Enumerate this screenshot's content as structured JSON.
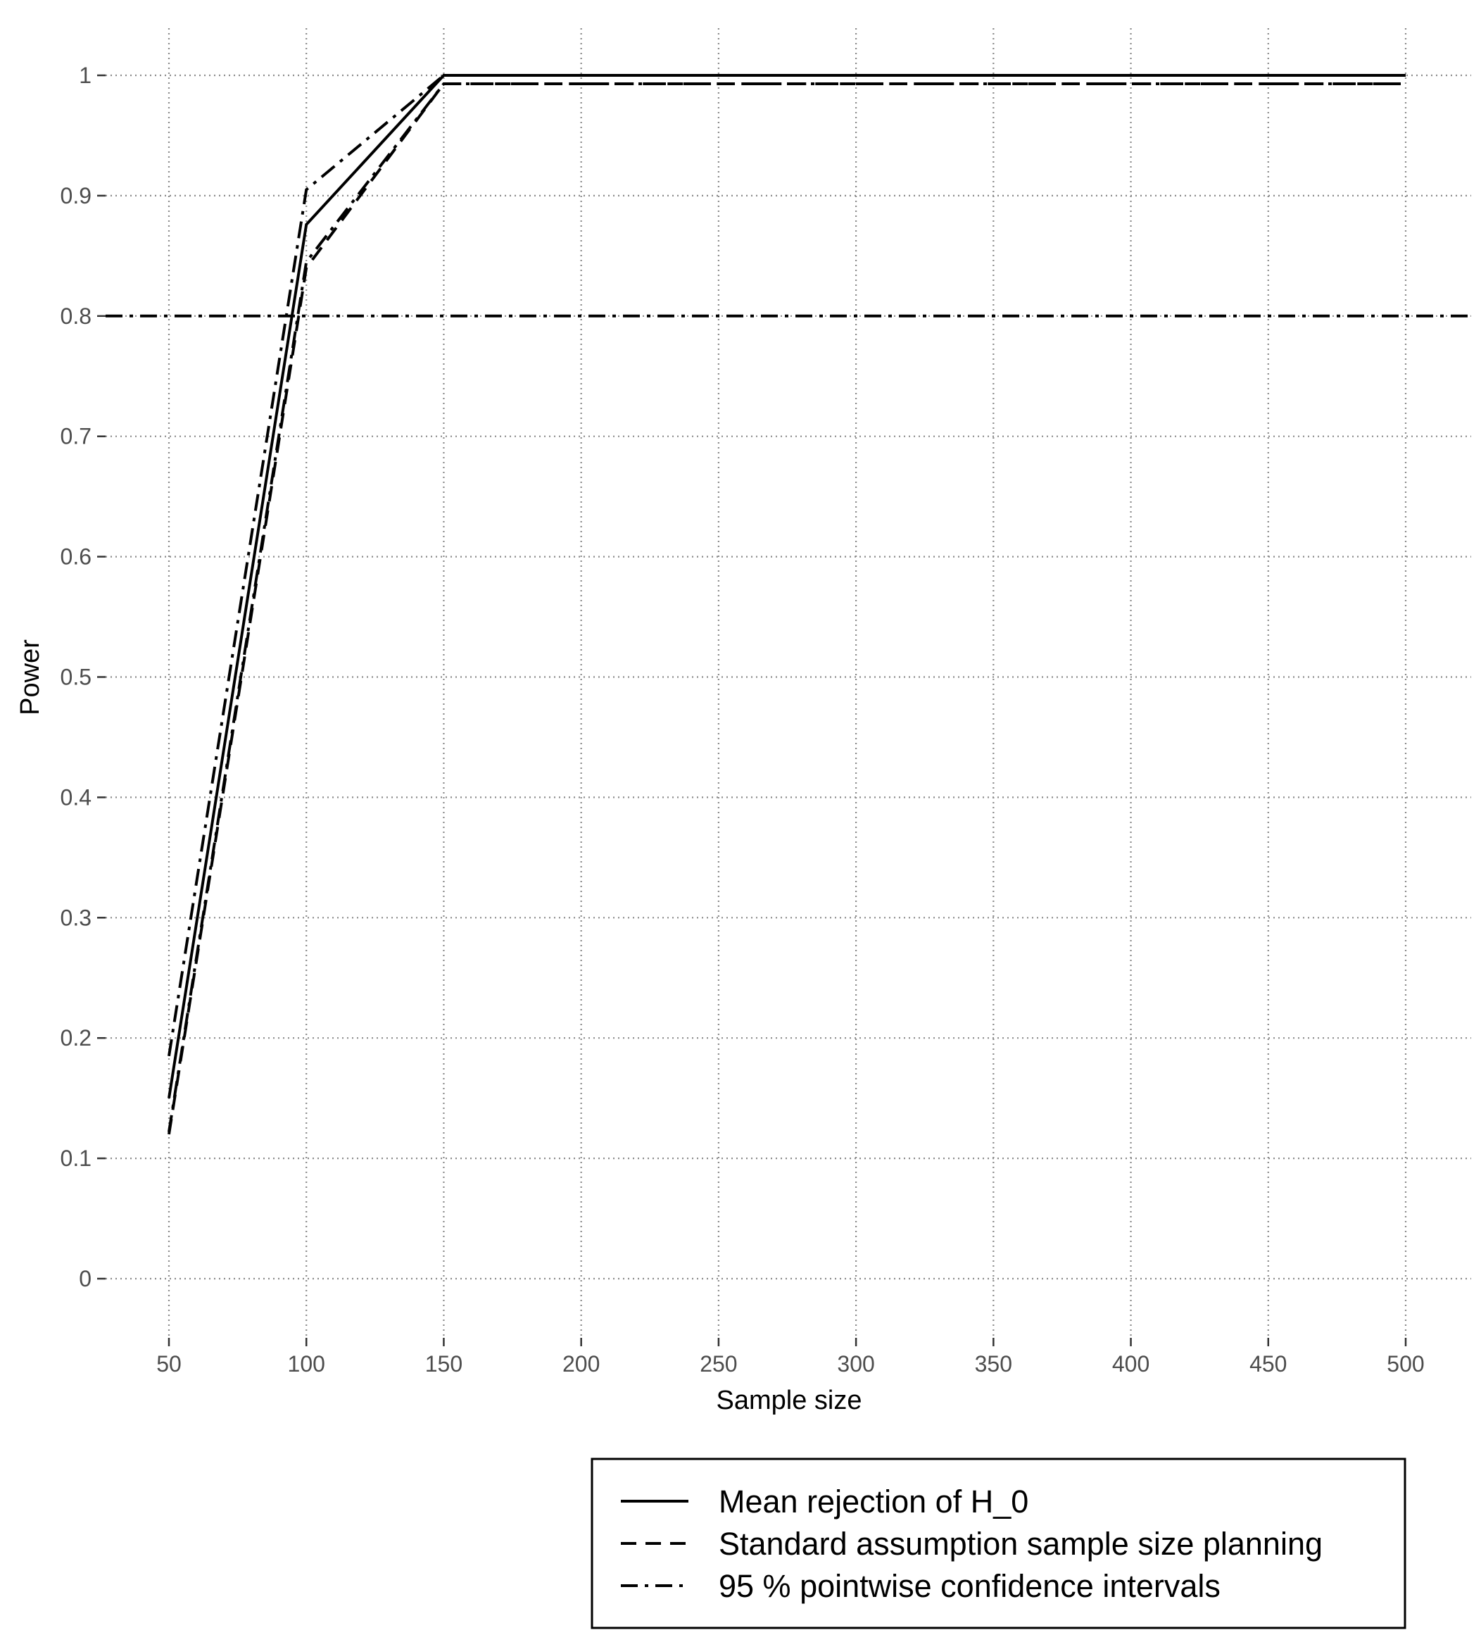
{
  "chart_data": {
    "type": "line",
    "xlabel": "Sample size",
    "ylabel": "Power",
    "xlim": [
      50,
      500
    ],
    "ylim": [
      0,
      1
    ],
    "x_ticks": [
      50,
      100,
      150,
      200,
      250,
      300,
      350,
      400,
      450,
      500
    ],
    "y_ticks": [
      0,
      0.1,
      0.2,
      0.3,
      0.4,
      0.5,
      0.6,
      0.7,
      0.8,
      0.9,
      1
    ],
    "y_tick_labels": [
      "0",
      "0.1",
      "0.2",
      "0.3",
      "0.4",
      "0.5",
      "0.6",
      "0.7",
      "0.8",
      "0.9",
      "1"
    ],
    "grid": true,
    "grid_style": "dotted",
    "legend_position": "bottom-right",
    "reference_line": {
      "y": 0.8,
      "style": "dashdot"
    },
    "x": [
      50,
      100,
      150,
      200,
      250,
      300,
      350,
      400,
      450,
      500
    ],
    "series": [
      {
        "name": "Mean rejection of H_0",
        "style": "solid",
        "values": [
          0.15,
          0.876,
          1.0,
          1.0,
          1.0,
          1.0,
          1.0,
          1.0,
          1.0,
          1.0
        ]
      },
      {
        "name": "Standard assumption sample size planning",
        "style": "dashed",
        "values": [
          0.12,
          0.84,
          0.993,
          0.993,
          0.993,
          0.993,
          0.993,
          0.993,
          0.993,
          0.993
        ]
      },
      {
        "name": "95 % pointwise confidence intervals",
        "style": "dashdot",
        "values": [
          0.185,
          0.905,
          1.0,
          1.0,
          1.0,
          1.0,
          1.0,
          1.0,
          1.0,
          1.0
        ]
      },
      {
        "name": "",
        "style": "dashdot",
        "values": [
          0.122,
          0.845,
          0.993,
          0.993,
          0.993,
          0.993,
          0.993,
          0.993,
          0.993,
          0.993
        ]
      }
    ],
    "legend": [
      {
        "label": "Mean rejection of H_0",
        "style": "solid"
      },
      {
        "label": "Standard assumption sample size planning",
        "style": "dashed"
      },
      {
        "label": "95 % pointwise confidence intervals",
        "style": "dashdot"
      }
    ]
  }
}
